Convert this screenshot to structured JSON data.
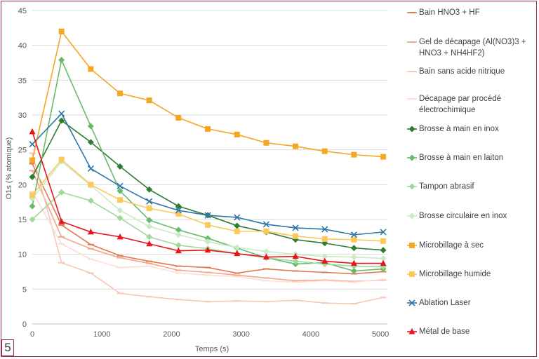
{
  "figure_number": "5",
  "chart_data": {
    "type": "line",
    "title": "",
    "xlabel": "Temps (s)",
    "ylabel": "O1s (% atomique)",
    "xlim": [
      0,
      5100
    ],
    "ylim": [
      0,
      45
    ],
    "xticks": [
      0,
      1000,
      2000,
      3000,
      4000,
      5000
    ],
    "yticks": [
      0,
      5,
      10,
      15,
      20,
      25,
      30,
      35,
      40,
      45
    ],
    "x": [
      0,
      420,
      840,
      1260,
      1680,
      2100,
      2520,
      2940,
      3360,
      3780,
      4200,
      4620,
      5040
    ],
    "grid": true,
    "legend_position": "right",
    "series": [
      {
        "name": "Bain HNO3 + HF",
        "color": "#e07850",
        "marker": "dash",
        "values": [
          23.0,
          14.2,
          11.4,
          9.8,
          9.0,
          8.3,
          8.1,
          7.3,
          7.9,
          7.6,
          7.4,
          7.2,
          7.5
        ]
      },
      {
        "name": "Gel de décapage (Al(NO3)3 + HNO3 + NH4HF2)",
        "color": "#f2a58c",
        "marker": "dash",
        "values": [
          22.0,
          12.5,
          10.8,
          9.5,
          8.7,
          7.7,
          7.4,
          7.0,
          6.6,
          6.2,
          6.3,
          6.1,
          6.3
        ]
      },
      {
        "name": "Bain sans acide nitrique",
        "color": "#f7c6b4",
        "marker": "dash",
        "values": [
          24.5,
          8.8,
          7.3,
          4.4,
          3.9,
          3.5,
          3.2,
          3.3,
          3.2,
          3.4,
          3.0,
          2.9,
          3.8
        ]
      },
      {
        "name": "Décapage par procédé électrochimique",
        "color": "#fbdfd3",
        "marker": "dash",
        "values": [
          19.0,
          11.5,
          9.3,
          8.1,
          8.3,
          7.3,
          7.0,
          6.8,
          6.2,
          6.0,
          6.2,
          6.0,
          6.4
        ]
      },
      {
        "name": "Brosse à main en inox",
        "color": "#2e7d32",
        "marker": "diamond",
        "values": [
          21.1,
          29.2,
          26.1,
          22.6,
          19.3,
          16.9,
          15.6,
          14.1,
          13.2,
          12.1,
          11.6,
          10.9,
          10.6
        ]
      },
      {
        "name": "Brosse à main en laiton",
        "color": "#66bb6a",
        "marker": "diamond",
        "values": [
          16.9,
          37.9,
          28.4,
          19.1,
          14.9,
          13.5,
          12.3,
          10.9,
          9.5,
          8.6,
          8.8,
          7.6,
          7.9
        ]
      },
      {
        "name": "Tampon abrasif",
        "color": "#9fd89a",
        "marker": "diamond",
        "values": [
          15.0,
          18.9,
          17.7,
          15.2,
          12.5,
          11.3,
          10.8,
          10.1,
          9.5,
          9.0,
          8.6,
          8.3,
          8.2
        ]
      },
      {
        "name": "Brosse circulaire en inox",
        "color": "#c9ebc4",
        "marker": "diamond",
        "values": [
          18.0,
          23.3,
          19.9,
          16.3,
          14.0,
          12.8,
          11.8,
          11.0,
          10.4,
          10.0,
          9.7,
          9.6,
          9.4
        ]
      },
      {
        "name": "Microbillage à sec",
        "color": "#f5a623",
        "marker": "square",
        "values": [
          23.5,
          42.0,
          36.6,
          33.1,
          32.1,
          29.6,
          28.0,
          27.2,
          26.0,
          25.5,
          24.8,
          24.3,
          24.0
        ]
      },
      {
        "name": "Microbillage humide",
        "color": "#fbc95a",
        "marker": "square",
        "values": [
          18.5,
          23.6,
          20.0,
          17.8,
          16.6,
          15.8,
          14.2,
          13.3,
          13.3,
          12.6,
          12.2,
          12.1,
          11.9
        ]
      },
      {
        "name": "Ablation Laser",
        "color": "#2e75a8",
        "marker": "x",
        "values": [
          25.8,
          30.2,
          22.3,
          19.8,
          17.6,
          16.3,
          15.6,
          15.3,
          14.3,
          13.8,
          13.6,
          12.8,
          13.2
        ]
      },
      {
        "name": "Métal de base",
        "color": "#e8141c",
        "marker": "triangle",
        "values": [
          27.6,
          14.7,
          13.2,
          12.5,
          11.5,
          10.5,
          10.6,
          10.1,
          9.6,
          9.7,
          9.0,
          8.7,
          8.7
        ]
      }
    ]
  }
}
